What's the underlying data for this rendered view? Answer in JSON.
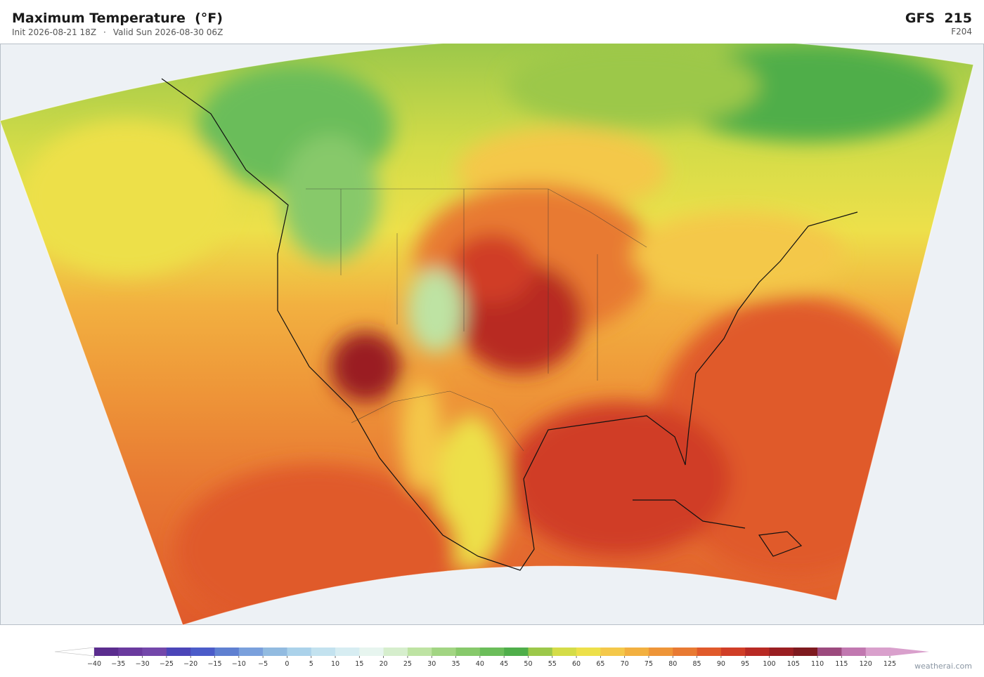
{
  "header": {
    "title": "Maximum Temperature  (°F)",
    "init": "Init 2026-08-21 18Z",
    "separator": "·",
    "valid": "Valid Sun 2026-08-30 06Z",
    "model": "GFS  215",
    "forecast_hour": "F204"
  },
  "colorbar": {
    "ticks": [
      {
        "value": -40,
        "label": "−40"
      },
      {
        "value": -35,
        "label": "−35"
      },
      {
        "value": -30,
        "label": "−30"
      },
      {
        "value": -25,
        "label": "−25"
      },
      {
        "value": -20,
        "label": "−20"
      },
      {
        "value": -15,
        "label": "−15"
      },
      {
        "value": -10,
        "label": "−10"
      },
      {
        "value": -5,
        "label": "−5"
      },
      0,
      5,
      10,
      15,
      20,
      25,
      30,
      35,
      40,
      45,
      50,
      55,
      60,
      65,
      70,
      75,
      80,
      85,
      90,
      95,
      100,
      105,
      110,
      115,
      120,
      125
    ],
    "colors": [
      "#5b2d8e",
      "#6a3a9e",
      "#7347aa",
      "#4b45b8",
      "#4b5cc9",
      "#5f80d1",
      "#7aa0dc",
      "#92bbe0",
      "#abd2ea",
      "#c3e2ef",
      "#d7edf2",
      "#e7f5ef",
      "#d6eecd",
      "#bee3a3",
      "#a2d583",
      "#87c96b",
      "#6bbd5a",
      "#4fae4a",
      "#9cc84a",
      "#d4dc48",
      "#ede04a",
      "#f4c84a",
      "#f2b040",
      "#ee9538",
      "#e87a33",
      "#e05a2b",
      "#d03e27",
      "#b82a24",
      "#9a1f22",
      "#7e1a1f",
      "#9c4a7e",
      "#c178b0",
      "#d9a0cc"
    ],
    "under_color": "#ffffff",
    "over_color": "#d9a0cc"
  },
  "credit": "weatherai.com"
}
